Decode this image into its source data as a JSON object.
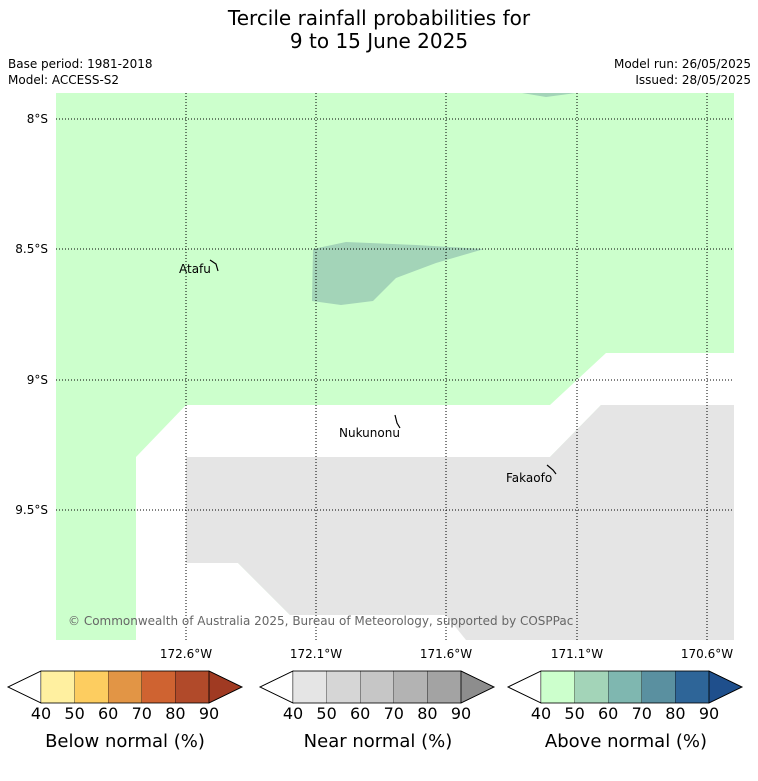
{
  "title": {
    "line1": "Tercile rainfall probabilities for",
    "line2": "9 to 15 June 2025"
  },
  "meta": {
    "base_period": "Base period: 1981-2018",
    "model": "Model: ACCESS-S2",
    "model_run": "Model run: 26/05/2025",
    "issued": "Issued: 28/05/2025"
  },
  "map": {
    "lat_labels": [
      "8°S",
      "8.5°S",
      "9°S",
      "9.5°S"
    ],
    "lon_labels": [
      "172.6°W",
      "172.1°W",
      "171.6°W",
      "171.1°W",
      "170.6°W"
    ],
    "places": [
      "Atafu",
      "Nukunonu",
      "Fakaofo"
    ],
    "copyright": "© Commonwealth of Australia 2025, Bureau of Meteorology, supported by COSPPac",
    "colors": {
      "above_40_50": "#ccffcc",
      "above_50_60": "#a3d4b8",
      "near_40_50": "#e5e5e5",
      "background": "#ffffff"
    }
  },
  "legends": [
    {
      "title": "Below normal (%)",
      "ticks": [
        "40",
        "50",
        "60",
        "70",
        "80",
        "90"
      ],
      "colors": [
        "#fff0a0",
        "#fdcd60",
        "#e29545",
        "#cf6331",
        "#b14a2a",
        "#a03a22"
      ]
    },
    {
      "title": "Near normal (%)",
      "ticks": [
        "40",
        "50",
        "60",
        "70",
        "80",
        "90"
      ],
      "colors": [
        "#e5e5e5",
        "#d6d6d6",
        "#c6c6c6",
        "#b3b3b3",
        "#a3a3a3",
        "#8d8d8d"
      ]
    },
    {
      "title": "Above normal (%)",
      "ticks": [
        "40",
        "50",
        "60",
        "70",
        "80",
        "90"
      ],
      "colors": [
        "#ccffcc",
        "#a3d4b8",
        "#7fb7b0",
        "#5a90a0",
        "#2e6598",
        "#1f4f8c"
      ]
    }
  ]
}
